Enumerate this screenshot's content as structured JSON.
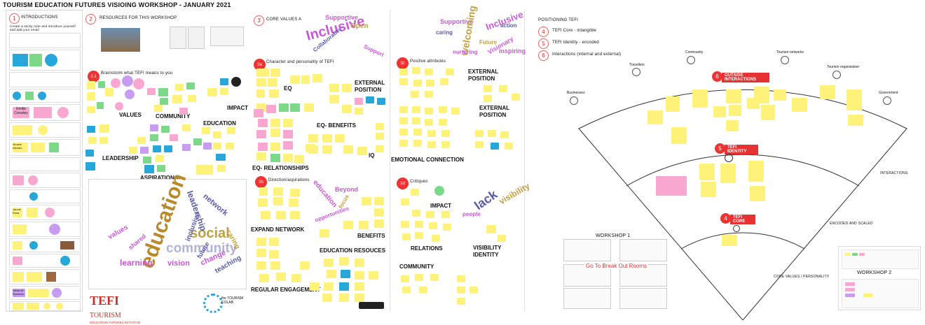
{
  "page_title": "TOURISM EDUCATION FUTURES VISIOING WORKSHOP - JANUARY 2021",
  "sections": {
    "s1": {
      "num": "1",
      "title": "INTRODUCTIONS",
      "instruction": "Create a sticky note and introduce yourself and add your email"
    },
    "s2": {
      "num": "2",
      "title": "RESOURCES FOR THIS WORKSHOP"
    },
    "s21": {
      "num": "2.1",
      "title": "Brainstorm what TEFI means to you"
    },
    "s3": {
      "num": "3",
      "title": "CORE VALUES AND I"
    },
    "s3a": {
      "num": "3a",
      "title": "Character and personality of TEFI"
    },
    "s3b": {
      "num": "3b",
      "title": "Direction/aspirations"
    },
    "s3c": {
      "num": "3c",
      "title": "Positive attributes"
    },
    "s3d": {
      "num": "3d",
      "title": "Critiques"
    }
  },
  "intro_names": [
    "Emilia Crossley",
    "Jhoarin Alesaro",
    "Jaume Rosa",
    "Stella Mi Rymania"
  ],
  "brainstorm_labels": [
    "VALUES",
    "COMMUNITY",
    "IMPACT",
    "EDUCATION",
    "LEADERSHIP",
    "ASPIRATIONAL"
  ],
  "wordcloud1": [
    "education",
    "community",
    "social",
    "learning",
    "leadership",
    "network",
    "vision",
    "values",
    "inclusive",
    "change",
    "teaching",
    "caring",
    "future",
    "shared"
  ],
  "cluster_labels_3": [
    "EQ",
    "EXTERNAL POSITION",
    "EQ- BENEFITS",
    "IQ",
    "EQ- RELATIONSHIPS",
    "EXPAND NETWORK",
    "BENEFITS",
    "EDUCATION RESOUCES",
    "REGULAR ENGAGEMENT"
  ],
  "cluster_labels_3c": [
    "EXTERNAL POSITION",
    "EXTERNAL POSITION",
    "EMOTIONAL CONNECTION",
    "IMPACT",
    "RELATIONS",
    "VISIBILITY IDENTITY",
    "COMMUNITY"
  ],
  "wordcloud3": [
    "Inclusive",
    "Supportive",
    "Open",
    "Collaborative",
    "Support"
  ],
  "wordcloud3c": [
    "Supportive",
    "caring",
    "welcoming",
    "Inclusive",
    "action",
    "Future",
    "Visionary",
    "inspiring",
    "nurturing"
  ],
  "wordcloud3d": [
    "education",
    "Beyond",
    "focus",
    "opportunities"
  ],
  "wordcloud3d2": [
    "visibility",
    "lack",
    "people"
  ],
  "positioning": {
    "title": "POSITIONING TEFI",
    "items": [
      {
        "num": "4",
        "label": "TEFI Core - intangible"
      },
      {
        "num": "5",
        "label": "TEFI Identity - encoded"
      },
      {
        "num": "6",
        "label": "Interactions (internal and external)"
      }
    ],
    "outer_label": "OUTSIDE INTERACTIONS",
    "identity_label": "TEFI IDENTITY",
    "core_label": "TEFI CORE",
    "ring_interactions": "INTERACTIONS",
    "ring_encoded": "ENCODED AND SCALED",
    "ring_core": "CORE VALUES / PERSONALITY",
    "icons": [
      "Travellers",
      "Community",
      "Tourism networks",
      "Tourism organisation",
      "Businesses",
      "Government"
    ]
  },
  "workshop1": {
    "title": "WORKSHOP 1",
    "link": "Go To Break Out Rooms"
  },
  "workshop2": {
    "title": "WORKSHOP 2"
  },
  "logos": {
    "tefi": "TEFI",
    "tefi_word": "TOURISM",
    "tefi_sub": "EDUCATION FUTURES INITIATIVE",
    "colab": "THE TOURISM COLAB",
    "colab_small": "the TOURISM COLAB"
  },
  "colors": {
    "accent_red": "#e33333",
    "note_yellow": "#fff27a",
    "note_pink": "#f7a7d0",
    "note_blue": "#27a7d9",
    "note_green": "#7ed88a",
    "wordcloud_purple": "#c85ad6"
  }
}
